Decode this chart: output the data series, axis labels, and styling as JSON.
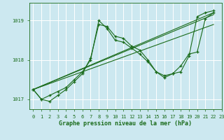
{
  "bg_color": "#cce8f0",
  "grid_color": "#ffffff",
  "line_color": "#1a6b1a",
  "title": "Graphe pression niveau de la mer (hPa)",
  "xlim": [
    -0.5,
    23
  ],
  "ylim": [
    1016.75,
    1019.45
  ],
  "yticks": [
    1017,
    1018,
    1019
  ],
  "xticks": [
    0,
    1,
    2,
    3,
    4,
    5,
    6,
    7,
    8,
    9,
    10,
    11,
    12,
    13,
    14,
    15,
    16,
    17,
    18,
    19,
    20,
    21,
    22,
    23
  ],
  "series_marked": [
    {
      "x": [
        0,
        1,
        2,
        3,
        4,
        5,
        6,
        7,
        8,
        9,
        10,
        11,
        12,
        13,
        14,
        15,
        16,
        17,
        18,
        19,
        20,
        21,
        22
      ],
      "y": [
        1017.25,
        1017.0,
        1016.95,
        1017.1,
        1017.25,
        1017.45,
        1017.65,
        1018.05,
        1018.9,
        1018.85,
        1018.6,
        1018.55,
        1018.35,
        1018.25,
        1018.0,
        1017.7,
        1017.55,
        1017.65,
        1017.85,
        1018.15,
        1018.2,
        1019.05,
        1019.2
      ]
    },
    {
      "x": [
        0,
        1,
        2,
        3,
        4,
        5,
        6,
        7,
        8,
        9,
        10,
        11,
        12,
        13,
        14,
        15,
        16,
        17,
        18,
        19,
        20,
        21,
        22
      ],
      "y": [
        1017.25,
        1017.0,
        1017.1,
        1017.2,
        1017.3,
        1017.5,
        1017.7,
        1018.0,
        1019.0,
        1018.8,
        1018.5,
        1018.45,
        1018.3,
        1018.15,
        1017.95,
        1017.7,
        1017.6,
        1017.65,
        1017.7,
        1018.1,
        1019.1,
        1019.2,
        1019.25
      ]
    }
  ],
  "series_straight": [
    {
      "x": [
        0,
        22
      ],
      "y": [
        1017.25,
        1019.2
      ]
    },
    {
      "x": [
        0,
        22
      ],
      "y": [
        1017.25,
        1019.15
      ]
    },
    {
      "x": [
        0,
        22
      ],
      "y": [
        1017.25,
        1018.9
      ]
    }
  ]
}
